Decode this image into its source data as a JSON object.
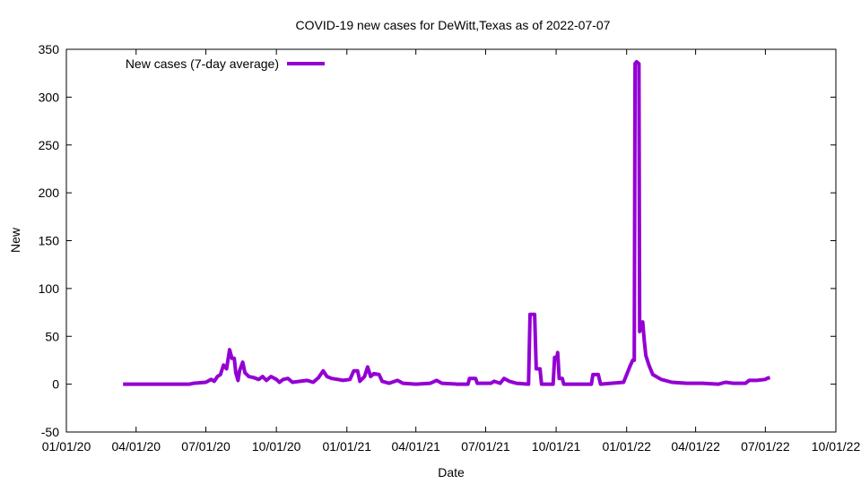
{
  "chart_data": {
    "type": "line",
    "title": "COVID-19 new cases for DeWitt,Texas as of 2022-07-07",
    "xlabel": "Date",
    "ylabel": "New",
    "xlim": [
      "2020-01-01",
      "2022-10-01"
    ],
    "ylim": [
      -50,
      350
    ],
    "yticks": [
      -50,
      0,
      50,
      100,
      150,
      200,
      250,
      300,
      350
    ],
    "xticks": [
      {
        "date": "2020-01-01",
        "label": "01/01/20"
      },
      {
        "date": "2020-04-01",
        "label": "04/01/20"
      },
      {
        "date": "2020-07-01",
        "label": "07/01/20"
      },
      {
        "date": "2020-10-01",
        "label": "10/01/20"
      },
      {
        "date": "2021-01-01",
        "label": "01/01/21"
      },
      {
        "date": "2021-04-01",
        "label": "04/01/21"
      },
      {
        "date": "2021-07-01",
        "label": "07/01/21"
      },
      {
        "date": "2021-10-01",
        "label": "10/01/21"
      },
      {
        "date": "2022-01-01",
        "label": "01/01/22"
      },
      {
        "date": "2022-04-01",
        "label": "04/01/22"
      },
      {
        "date": "2022-07-01",
        "label": "07/01/22"
      },
      {
        "date": "2022-10-01",
        "label": "10/01/22"
      }
    ],
    "grid": false,
    "legend_position": "top-left",
    "series": [
      {
        "name": "New cases (7-day average)",
        "color": "#9400d3",
        "points": [
          [
            "2020-03-15",
            0
          ],
          [
            "2020-04-15",
            0
          ],
          [
            "2020-05-15",
            0
          ],
          [
            "2020-06-10",
            0
          ],
          [
            "2020-06-15",
            1
          ],
          [
            "2020-07-01",
            2
          ],
          [
            "2020-07-08",
            5
          ],
          [
            "2020-07-12",
            3
          ],
          [
            "2020-07-16",
            8
          ],
          [
            "2020-07-20",
            10
          ],
          [
            "2020-07-24",
            20
          ],
          [
            "2020-07-28",
            16
          ],
          [
            "2020-08-01",
            36
          ],
          [
            "2020-08-04",
            27
          ],
          [
            "2020-08-07",
            27
          ],
          [
            "2020-08-09",
            12
          ],
          [
            "2020-08-12",
            4
          ],
          [
            "2020-08-14",
            14
          ],
          [
            "2020-08-18",
            23
          ],
          [
            "2020-08-21",
            12
          ],
          [
            "2020-08-26",
            8
          ],
          [
            "2020-09-01",
            7
          ],
          [
            "2020-09-08",
            5
          ],
          [
            "2020-09-13",
            8
          ],
          [
            "2020-09-18",
            4
          ],
          [
            "2020-09-24",
            8
          ],
          [
            "2020-10-01",
            5
          ],
          [
            "2020-10-05",
            2
          ],
          [
            "2020-10-10",
            5
          ],
          [
            "2020-10-16",
            6
          ],
          [
            "2020-10-22",
            2
          ],
          [
            "2020-11-01",
            3
          ],
          [
            "2020-11-10",
            4
          ],
          [
            "2020-11-18",
            2
          ],
          [
            "2020-11-25",
            7
          ],
          [
            "2020-12-01",
            14
          ],
          [
            "2020-12-06",
            8
          ],
          [
            "2020-12-12",
            6
          ],
          [
            "2020-12-20",
            5
          ],
          [
            "2020-12-27",
            4
          ],
          [
            "2021-01-05",
            5
          ],
          [
            "2021-01-10",
            14
          ],
          [
            "2021-01-15",
            14
          ],
          [
            "2021-01-18",
            3
          ],
          [
            "2021-01-24",
            8
          ],
          [
            "2021-01-28",
            18
          ],
          [
            "2021-02-01",
            8
          ],
          [
            "2021-02-05",
            11
          ],
          [
            "2021-02-12",
            10
          ],
          [
            "2021-02-16",
            3
          ],
          [
            "2021-02-25",
            1
          ],
          [
            "2021-03-08",
            4
          ],
          [
            "2021-03-15",
            1
          ],
          [
            "2021-04-01",
            0
          ],
          [
            "2021-04-20",
            1
          ],
          [
            "2021-04-28",
            4
          ],
          [
            "2021-05-05",
            1
          ],
          [
            "2021-05-25",
            0
          ],
          [
            "2021-06-08",
            0
          ],
          [
            "2021-06-10",
            6
          ],
          [
            "2021-06-18",
            6
          ],
          [
            "2021-06-20",
            1
          ],
          [
            "2021-07-08",
            1
          ],
          [
            "2021-07-12",
            3
          ],
          [
            "2021-07-20",
            1
          ],
          [
            "2021-07-25",
            6
          ],
          [
            "2021-08-01",
            3
          ],
          [
            "2021-08-10",
            1
          ],
          [
            "2021-08-26",
            0
          ],
          [
            "2021-08-28",
            73
          ],
          [
            "2021-09-03",
            73
          ],
          [
            "2021-09-05",
            16
          ],
          [
            "2021-09-10",
            16
          ],
          [
            "2021-09-12",
            0
          ],
          [
            "2021-09-27",
            0
          ],
          [
            "2021-09-29",
            28
          ],
          [
            "2021-10-02",
            28
          ],
          [
            "2021-10-03",
            33
          ],
          [
            "2021-10-05",
            6
          ],
          [
            "2021-10-09",
            6
          ],
          [
            "2021-10-11",
            0
          ],
          [
            "2021-11-16",
            0
          ],
          [
            "2021-11-18",
            10
          ],
          [
            "2021-11-25",
            10
          ],
          [
            "2021-11-28",
            0
          ],
          [
            "2021-12-12",
            1
          ],
          [
            "2021-12-28",
            2
          ],
          [
            "2022-01-02",
            12
          ],
          [
            "2022-01-06",
            20
          ],
          [
            "2022-01-09",
            25
          ],
          [
            "2022-01-11",
            25
          ],
          [
            "2022-01-12",
            335
          ],
          [
            "2022-01-14",
            337
          ],
          [
            "2022-01-17",
            335
          ],
          [
            "2022-01-18",
            55
          ],
          [
            "2022-01-20",
            60
          ],
          [
            "2022-01-22",
            65
          ],
          [
            "2022-01-24",
            45
          ],
          [
            "2022-01-26",
            30
          ],
          [
            "2022-01-30",
            20
          ],
          [
            "2022-02-04",
            10
          ],
          [
            "2022-02-15",
            5
          ],
          [
            "2022-03-01",
            2
          ],
          [
            "2022-03-20",
            1
          ],
          [
            "2022-04-10",
            1
          ],
          [
            "2022-05-01",
            0
          ],
          [
            "2022-05-10",
            2
          ],
          [
            "2022-05-20",
            1
          ],
          [
            "2022-06-05",
            1
          ],
          [
            "2022-06-10",
            4
          ],
          [
            "2022-06-20",
            4
          ],
          [
            "2022-07-01",
            5
          ],
          [
            "2022-07-03",
            6
          ],
          [
            "2022-07-07",
            7
          ]
        ]
      }
    ]
  }
}
